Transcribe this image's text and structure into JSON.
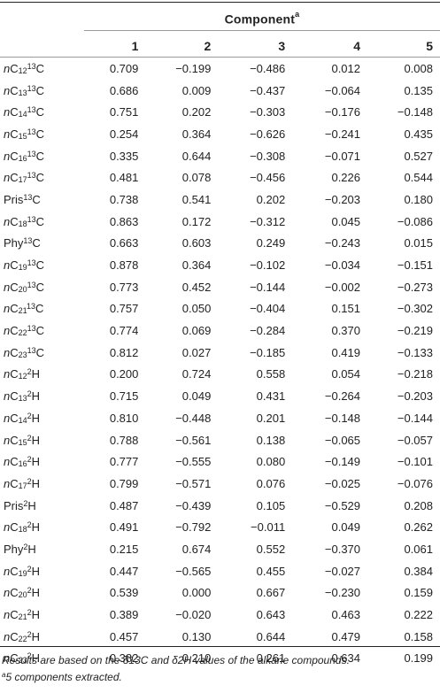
{
  "table": {
    "group_header": "Component",
    "group_header_mark": "a",
    "columns": [
      "1",
      "2",
      "3",
      "4",
      "5"
    ],
    "rows": [
      {
        "prefix": "n",
        "base": "C",
        "sub": "12",
        "sup": "13",
        "elem": "C",
        "values": [
          "0.709",
          "−0.199",
          "−0.486",
          "0.012",
          "0.008"
        ]
      },
      {
        "prefix": "n",
        "base": "C",
        "sub": "13",
        "sup": "13",
        "elem": "C",
        "values": [
          "0.686",
          "0.009",
          "−0.437",
          "−0.064",
          "0.135"
        ]
      },
      {
        "prefix": "n",
        "base": "C",
        "sub": "14",
        "sup": "13",
        "elem": "C",
        "values": [
          "0.751",
          "0.202",
          "−0.303",
          "−0.176",
          "−0.148"
        ]
      },
      {
        "prefix": "n",
        "base": "C",
        "sub": "15",
        "sup": "13",
        "elem": "C",
        "values": [
          "0.254",
          "0.364",
          "−0.626",
          "−0.241",
          "0.435"
        ]
      },
      {
        "prefix": "n",
        "base": "C",
        "sub": "16",
        "sup": "13",
        "elem": "C",
        "values": [
          "0.335",
          "0.644",
          "−0.308",
          "−0.071",
          "0.527"
        ]
      },
      {
        "prefix": "n",
        "base": "C",
        "sub": "17",
        "sup": "13",
        "elem": "C",
        "values": [
          "0.481",
          "0.078",
          "−0.456",
          "0.226",
          "0.544"
        ]
      },
      {
        "prefix": "",
        "base": "Pris",
        "sub": "",
        "sup": "13",
        "elem": "C",
        "values": [
          "0.738",
          "0.541",
          "0.202",
          "−0.203",
          "0.180"
        ]
      },
      {
        "prefix": "n",
        "base": "C",
        "sub": "18",
        "sup": "13",
        "elem": "C",
        "values": [
          "0.863",
          "0.172",
          "−0.312",
          "0.045",
          "−0.086"
        ]
      },
      {
        "prefix": "",
        "base": "Phy",
        "sub": "",
        "sup": "13",
        "elem": "C",
        "values": [
          "0.663",
          "0.603",
          "0.249",
          "−0.243",
          "0.015"
        ]
      },
      {
        "prefix": "n",
        "base": "C",
        "sub": "19",
        "sup": "13",
        "elem": "C",
        "values": [
          "0.878",
          "0.364",
          "−0.102",
          "−0.034",
          "−0.151"
        ]
      },
      {
        "prefix": "n",
        "base": "C",
        "sub": "20",
        "sup": "13",
        "elem": "C",
        "values": [
          "0.773",
          "0.452",
          "−0.144",
          "−0.002",
          "−0.273"
        ]
      },
      {
        "prefix": "n",
        "base": "C",
        "sub": "21",
        "sup": "13",
        "elem": "C",
        "values": [
          "0.757",
          "0.050",
          "−0.404",
          "0.151",
          "−0.302"
        ]
      },
      {
        "prefix": "n",
        "base": "C",
        "sub": "22",
        "sup": "13",
        "elem": "C",
        "values": [
          "0.774",
          "0.069",
          "−0.284",
          "0.370",
          "−0.219"
        ]
      },
      {
        "prefix": "n",
        "base": "C",
        "sub": "23",
        "sup": "13",
        "elem": "C",
        "values": [
          "0.812",
          "0.027",
          "−0.185",
          "0.419",
          "−0.133"
        ]
      },
      {
        "prefix": "n",
        "base": "C",
        "sub": "12",
        "sup": "2",
        "elem": "H",
        "values": [
          "0.200",
          "0.724",
          "0.558",
          "0.054",
          "−0.218"
        ]
      },
      {
        "prefix": "n",
        "base": "C",
        "sub": "13",
        "sup": "2",
        "elem": "H",
        "values": [
          "0.715",
          "0.049",
          "0.431",
          "−0.264",
          "−0.203"
        ]
      },
      {
        "prefix": "n",
        "base": "C",
        "sub": "14",
        "sup": "2",
        "elem": "H",
        "values": [
          "0.810",
          "−0.448",
          "0.201",
          "−0.148",
          "−0.144"
        ]
      },
      {
        "prefix": "n",
        "base": "C",
        "sub": "15",
        "sup": "2",
        "elem": "H",
        "values": [
          "0.788",
          "−0.561",
          "0.138",
          "−0.065",
          "−0.057"
        ]
      },
      {
        "prefix": "n",
        "base": "C",
        "sub": "16",
        "sup": "2",
        "elem": "H",
        "values": [
          "0.777",
          "−0.555",
          "0.080",
          "−0.149",
          "−0.101"
        ]
      },
      {
        "prefix": "n",
        "base": "C",
        "sub": "17",
        "sup": "2",
        "elem": "H",
        "values": [
          "0.799",
          "−0.571",
          "0.076",
          "−0.025",
          "−0.076"
        ]
      },
      {
        "prefix": "",
        "base": "Pris",
        "sub": "",
        "sup": "2",
        "elem": "H",
        "values": [
          "0.487",
          "−0.439",
          "0.105",
          "−0.529",
          "0.208"
        ]
      },
      {
        "prefix": "n",
        "base": "C",
        "sub": "18",
        "sup": "2",
        "elem": "H",
        "values": [
          "0.491",
          "−0.792",
          "−0.011",
          "0.049",
          "0.262"
        ]
      },
      {
        "prefix": "",
        "base": "Phy",
        "sub": "",
        "sup": "2",
        "elem": "H",
        "values": [
          "0.215",
          "0.674",
          "0.552",
          "−0.370",
          "0.061"
        ]
      },
      {
        "prefix": "n",
        "base": "C",
        "sub": "19",
        "sup": "2",
        "elem": "H",
        "values": [
          "0.447",
          "−0.565",
          "0.455",
          "−0.027",
          "0.384"
        ]
      },
      {
        "prefix": "n",
        "base": "C",
        "sub": "20",
        "sup": "2",
        "elem": "H",
        "values": [
          "0.539",
          "0.000",
          "0.667",
          "−0.230",
          "0.159"
        ]
      },
      {
        "prefix": "n",
        "base": "C",
        "sub": "21",
        "sup": "2",
        "elem": "H",
        "values": [
          "0.389",
          "−0.020",
          "0.643",
          "0.463",
          "0.222"
        ]
      },
      {
        "prefix": "n",
        "base": "C",
        "sub": "22",
        "sup": "2",
        "elem": "H",
        "values": [
          "0.457",
          "0.130",
          "0.644",
          "0.479",
          "0.158"
        ]
      },
      {
        "prefix": "n",
        "base": "C",
        "sub": "23",
        "sup": "2",
        "elem": "H",
        "values": [
          "0.382",
          "0.210",
          "0.261",
          "0.634",
          "0.199"
        ]
      }
    ]
  },
  "footnotes": {
    "line1": "Results are based on the δ13C and δ2H values of the alkane compounds.",
    "line2_mark": "a",
    "line2": "5 components extracted."
  }
}
